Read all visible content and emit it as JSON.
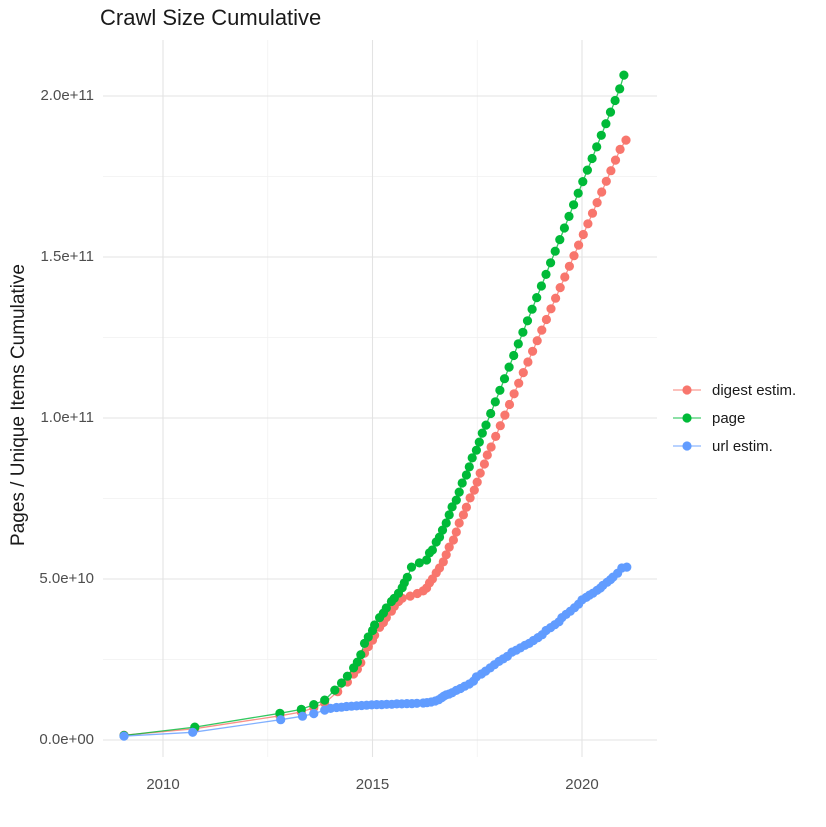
{
  "figure": {
    "title": "Crawl Size Cumulative"
  },
  "chart_data": {
    "type": "scatter",
    "title": "Crawl Size Cumulative",
    "xlabel": "",
    "ylabel": "Pages / Unique Items Cumulative",
    "value_unit": "1 = 1e9 pages / unique items (cumulative)",
    "xlim": [
      2008.568,
      2021.79
    ],
    "ylim_e9": [
      -5.28,
      217.39
    ],
    "grid": "major+minor",
    "legend_position": "right",
    "xticks": {
      "major": [
        2010,
        2015,
        2020
      ],
      "minor": [
        2012.5,
        2017.5
      ],
      "labels": [
        "2010",
        "2015",
        "2020"
      ]
    },
    "yticks": {
      "major_e9": [
        0,
        50,
        100,
        150,
        200
      ],
      "minor_e9": [
        25,
        75,
        125,
        175
      ],
      "labels": [
        "0.0e+00",
        "5.0e+10",
        "1.0e+11",
        "1.5e+11",
        "2.0e+11"
      ]
    },
    "series": [
      {
        "name": "digest estim.",
        "color": "#F8766D",
        "points": [
          [
            2009.07,
            1.5
          ],
          [
            2010.76,
            3.5
          ],
          [
            2012.79,
            7.5
          ],
          [
            2013.3,
            8.7
          ],
          [
            2013.6,
            10.0
          ],
          [
            2013.86,
            11.5
          ],
          [
            2014.17,
            15.0
          ],
          [
            2014.4,
            18.0
          ],
          [
            2014.55,
            20.5
          ],
          [
            2014.64,
            22.0
          ],
          [
            2014.72,
            24.0
          ],
          [
            2014.81,
            27.0
          ],
          [
            2014.9,
            29.0
          ],
          [
            2015.0,
            31.0
          ],
          [
            2015.05,
            32.5
          ],
          [
            2015.17,
            35.0
          ],
          [
            2015.26,
            36.5
          ],
          [
            2015.33,
            38.0
          ],
          [
            2015.45,
            40.0
          ],
          [
            2015.52,
            41.5
          ],
          [
            2015.62,
            43.0
          ],
          [
            2015.71,
            44.0
          ],
          [
            2015.9,
            44.7
          ],
          [
            2016.07,
            45.5
          ],
          [
            2016.21,
            46.3
          ],
          [
            2016.29,
            47.2
          ],
          [
            2016.36,
            48.8
          ],
          [
            2016.43,
            50.0
          ],
          [
            2016.52,
            51.9
          ],
          [
            2016.6,
            53.4
          ],
          [
            2016.69,
            55.3
          ],
          [
            2016.76,
            57.5
          ],
          [
            2016.83,
            59.9
          ],
          [
            2016.93,
            62.1
          ],
          [
            2017.0,
            64.6
          ],
          [
            2017.07,
            67.4
          ],
          [
            2017.17,
            69.9
          ],
          [
            2017.24,
            72.3
          ],
          [
            2017.33,
            75.2
          ],
          [
            2017.43,
            77.6
          ],
          [
            2017.5,
            80.1
          ],
          [
            2017.57,
            82.9
          ],
          [
            2017.67,
            85.7
          ],
          [
            2017.74,
            88.5
          ],
          [
            2017.83,
            91.0
          ],
          [
            2017.94,
            94.3
          ],
          [
            2018.05,
            97.6
          ],
          [
            2018.16,
            100.9
          ],
          [
            2018.27,
            104.2
          ],
          [
            2018.38,
            107.5
          ],
          [
            2018.49,
            110.8
          ],
          [
            2018.6,
            114.1
          ],
          [
            2018.71,
            117.4
          ],
          [
            2018.82,
            120.7
          ],
          [
            2018.93,
            124.0
          ],
          [
            2019.04,
            127.3
          ],
          [
            2019.15,
            130.6
          ],
          [
            2019.26,
            133.9
          ],
          [
            2019.37,
            137.2
          ],
          [
            2019.48,
            140.5
          ],
          [
            2019.59,
            143.8
          ],
          [
            2019.7,
            147.1
          ],
          [
            2019.81,
            150.4
          ],
          [
            2019.92,
            153.7
          ],
          [
            2020.03,
            157.0
          ],
          [
            2020.14,
            160.3
          ],
          [
            2020.25,
            163.6
          ],
          [
            2020.36,
            166.9
          ],
          [
            2020.47,
            170.2
          ],
          [
            2020.58,
            173.5
          ],
          [
            2020.69,
            176.8
          ],
          [
            2020.8,
            180.1
          ],
          [
            2020.91,
            183.4
          ],
          [
            2021.05,
            186.3
          ]
        ]
      },
      {
        "name": "page",
        "color": "#00BA38",
        "points": [
          [
            2009.07,
            1.4
          ],
          [
            2010.76,
            4.0
          ],
          [
            2012.79,
            8.3
          ],
          [
            2013.3,
            9.5
          ],
          [
            2013.6,
            11.0
          ],
          [
            2013.86,
            12.4
          ],
          [
            2014.1,
            15.5
          ],
          [
            2014.26,
            17.7
          ],
          [
            2014.4,
            19.8
          ],
          [
            2014.55,
            22.4
          ],
          [
            2014.64,
            24.2
          ],
          [
            2014.72,
            26.5
          ],
          [
            2014.81,
            30.0
          ],
          [
            2014.9,
            32.0
          ],
          [
            2015.0,
            34.0
          ],
          [
            2015.05,
            35.7
          ],
          [
            2015.17,
            38.0
          ],
          [
            2015.26,
            39.4
          ],
          [
            2015.33,
            41.0
          ],
          [
            2015.45,
            43.0
          ],
          [
            2015.52,
            44.0
          ],
          [
            2015.62,
            45.6
          ],
          [
            2015.71,
            47.3
          ],
          [
            2015.76,
            48.8
          ],
          [
            2015.83,
            50.5
          ],
          [
            2015.93,
            53.7
          ],
          [
            2016.12,
            55.0
          ],
          [
            2016.29,
            55.9
          ],
          [
            2016.36,
            58.1
          ],
          [
            2016.43,
            59.0
          ],
          [
            2016.52,
            61.5
          ],
          [
            2016.6,
            63.0
          ],
          [
            2016.67,
            65.2
          ],
          [
            2016.76,
            67.4
          ],
          [
            2016.83,
            69.9
          ],
          [
            2016.9,
            72.4
          ],
          [
            2017.0,
            74.5
          ],
          [
            2017.07,
            77.0
          ],
          [
            2017.14,
            79.8
          ],
          [
            2017.24,
            82.3
          ],
          [
            2017.31,
            84.8
          ],
          [
            2017.38,
            87.6
          ],
          [
            2017.48,
            90.0
          ],
          [
            2017.55,
            92.5
          ],
          [
            2017.62,
            95.3
          ],
          [
            2017.71,
            97.8
          ],
          [
            2017.82,
            101.4
          ],
          [
            2017.93,
            105.0
          ],
          [
            2018.04,
            108.6
          ],
          [
            2018.15,
            112.2
          ],
          [
            2018.26,
            115.8
          ],
          [
            2018.37,
            119.4
          ],
          [
            2018.48,
            123.0
          ],
          [
            2018.59,
            126.6
          ],
          [
            2018.7,
            130.2
          ],
          [
            2018.81,
            133.8
          ],
          [
            2018.92,
            137.4
          ],
          [
            2019.03,
            141.0
          ],
          [
            2019.14,
            144.6
          ],
          [
            2019.25,
            148.2
          ],
          [
            2019.36,
            151.8
          ],
          [
            2019.47,
            155.4
          ],
          [
            2019.58,
            159.0
          ],
          [
            2019.69,
            162.6
          ],
          [
            2019.8,
            166.2
          ],
          [
            2019.91,
            169.8
          ],
          [
            2020.02,
            173.4
          ],
          [
            2020.13,
            177.0
          ],
          [
            2020.24,
            180.6
          ],
          [
            2020.35,
            184.2
          ],
          [
            2020.46,
            187.8
          ],
          [
            2020.57,
            191.4
          ],
          [
            2020.68,
            195.0
          ],
          [
            2020.79,
            198.6
          ],
          [
            2020.9,
            202.2
          ],
          [
            2021.0,
            206.5
          ]
        ]
      },
      {
        "name": "url estim.",
        "color": "#619CFF",
        "points": [
          [
            2009.07,
            1.2
          ],
          [
            2010.71,
            2.4
          ],
          [
            2012.81,
            6.3
          ],
          [
            2013.33,
            7.4
          ],
          [
            2013.6,
            8.2
          ],
          [
            2013.86,
            9.3
          ],
          [
            2014.0,
            9.8
          ],
          [
            2014.14,
            10.1
          ],
          [
            2014.26,
            10.2
          ],
          [
            2014.38,
            10.4
          ],
          [
            2014.5,
            10.5
          ],
          [
            2014.62,
            10.6
          ],
          [
            2014.74,
            10.7
          ],
          [
            2014.86,
            10.8
          ],
          [
            2014.98,
            10.9
          ],
          [
            2015.1,
            11.0
          ],
          [
            2015.22,
            11.0
          ],
          [
            2015.34,
            11.1
          ],
          [
            2015.46,
            11.1
          ],
          [
            2015.58,
            11.2
          ],
          [
            2015.7,
            11.2
          ],
          [
            2015.82,
            11.3
          ],
          [
            2015.94,
            11.3
          ],
          [
            2016.06,
            11.4
          ],
          [
            2016.21,
            11.5
          ],
          [
            2016.3,
            11.6
          ],
          [
            2016.4,
            11.8
          ],
          [
            2016.5,
            12.1
          ],
          [
            2016.58,
            12.5
          ],
          [
            2016.65,
            13.1
          ],
          [
            2016.7,
            13.6
          ],
          [
            2016.76,
            14.0
          ],
          [
            2016.83,
            14.3
          ],
          [
            2016.9,
            14.7
          ],
          [
            2017.0,
            15.4
          ],
          [
            2017.1,
            16.0
          ],
          [
            2017.2,
            16.7
          ],
          [
            2017.31,
            17.4
          ],
          [
            2017.41,
            18.3
          ],
          [
            2017.48,
            19.6
          ],
          [
            2017.6,
            20.5
          ],
          [
            2017.7,
            21.4
          ],
          [
            2017.81,
            22.4
          ],
          [
            2017.91,
            23.4
          ],
          [
            2018.02,
            24.4
          ],
          [
            2018.12,
            25.2
          ],
          [
            2018.22,
            26.0
          ],
          [
            2018.33,
            27.3
          ],
          [
            2018.43,
            27.9
          ],
          [
            2018.53,
            28.6
          ],
          [
            2018.64,
            29.4
          ],
          [
            2018.74,
            30.0
          ],
          [
            2018.84,
            30.9
          ],
          [
            2018.95,
            31.8
          ],
          [
            2019.05,
            32.7
          ],
          [
            2019.14,
            34.0
          ],
          [
            2019.25,
            34.9
          ],
          [
            2019.35,
            35.8
          ],
          [
            2019.45,
            36.7
          ],
          [
            2019.52,
            38.0
          ],
          [
            2019.62,
            39.0
          ],
          [
            2019.72,
            40.0
          ],
          [
            2019.82,
            41.1
          ],
          [
            2019.92,
            42.2
          ],
          [
            2020.0,
            43.5
          ],
          [
            2020.1,
            44.3
          ],
          [
            2020.18,
            45.0
          ],
          [
            2020.26,
            45.6
          ],
          [
            2020.36,
            46.5
          ],
          [
            2020.44,
            47.2
          ],
          [
            2020.5,
            48.0
          ],
          [
            2020.6,
            49.0
          ],
          [
            2020.68,
            49.8
          ],
          [
            2020.74,
            50.6
          ],
          [
            2020.85,
            51.8
          ],
          [
            2020.95,
            53.4
          ],
          [
            2021.07,
            53.7
          ]
        ]
      }
    ]
  },
  "legend": {
    "items": [
      {
        "label": "digest estim."
      },
      {
        "label": "page"
      },
      {
        "label": "url estim."
      }
    ]
  }
}
